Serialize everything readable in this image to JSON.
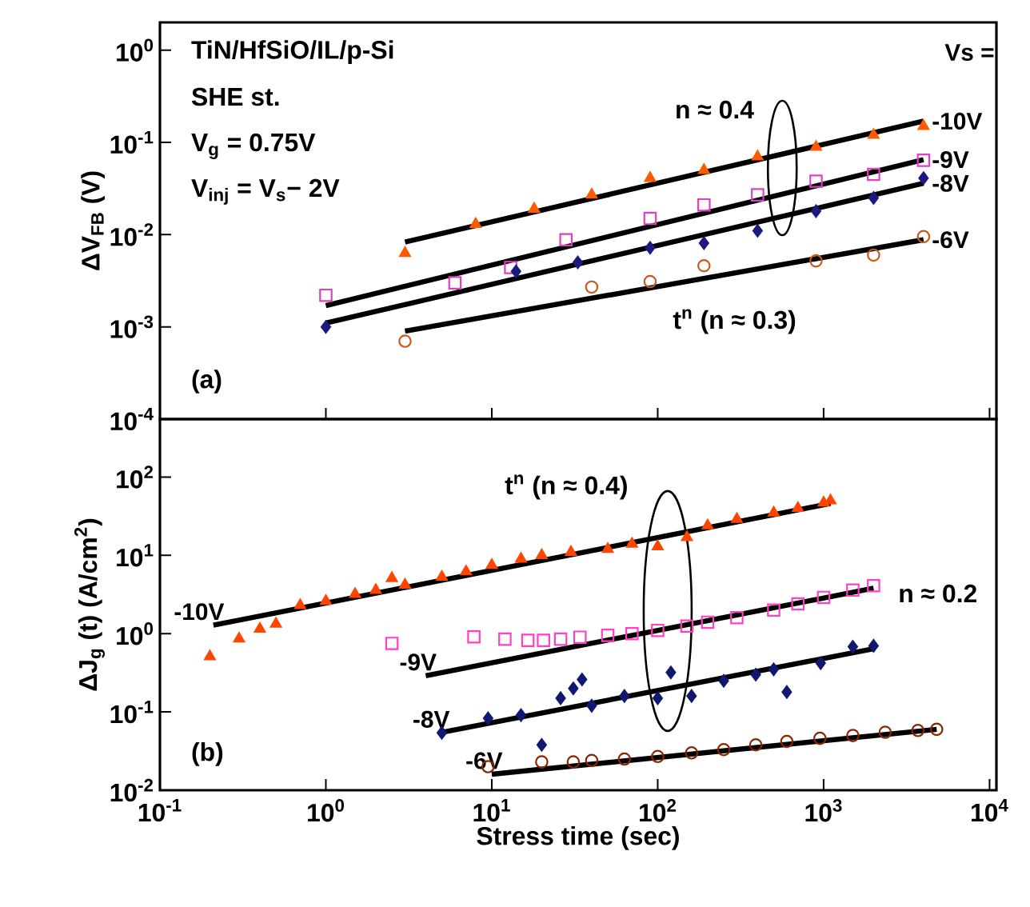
{
  "chart_data": [
    {
      "type": "scatter",
      "ylabel": "ΔV$_{FB}$ (V)",
      "legend_title": "Vs =",
      "legend": "right",
      "log": "xy",
      "tick_labels": "y",
      "xlim": [
        0.1,
        11000
      ],
      "ylim": [
        0.0001,
        2
      ],
      "xticks": [
        {
          "value": 0.1,
          "label": null
        },
        {
          "value": 1,
          "label": null
        },
        {
          "value": 10,
          "label": null
        },
        {
          "value": 100,
          "label": null
        },
        {
          "value": 1000,
          "label": null
        },
        {
          "value": 10000,
          "label": null
        }
      ],
      "yticks": [
        {
          "value": 0.0001,
          "label": "10$^{-4}$"
        },
        {
          "value": 0.001,
          "label": "10$^{-3}$"
        },
        {
          "value": 0.01,
          "label": "10$^{-2}$"
        },
        {
          "value": 0.1,
          "label": "10$^{-1}$"
        },
        {
          "value": 1,
          "label": "10$^{0}$"
        }
      ],
      "annotations": [
        "TiN/HfSiO/IL/p-Si",
        "SHE st.",
        "V$_{g}$ = 0.75V",
        "V$_{inj}$ = V$_{s}$− 2V",
        "n ≈ 0.4",
        "t$^{n}$ (n ≈ 0.3)",
        "(a)"
      ],
      "series": [
        {
          "marker": "triangle",
          "color": "#ff5a00",
          "x": [
            3,
            8,
            18,
            40,
            90,
            190,
            400,
            900,
            2000,
            4000
          ],
          "values": [
            0.0063,
            0.013,
            0.019,
            0.027,
            0.041,
            0.05,
            0.07,
            0.089,
            0.12,
            0.15
          ]
        },
        {
          "marker": "square",
          "color": "#e040c0",
          "x": [
            1,
            6,
            13,
            28,
            90,
            190,
            400,
            900,
            2000,
            4000
          ],
          "values": [
            0.0022,
            0.003,
            0.0044,
            0.0088,
            0.015,
            0.021,
            0.027,
            0.038,
            0.045,
            0.064
          ]
        },
        {
          "marker": "diamond",
          "color": "#1a1a80",
          "x": [
            1,
            14,
            33,
            90,
            190,
            400,
            900,
            2000,
            4000
          ],
          "values": [
            0.001,
            0.004,
            0.005,
            0.0072,
            0.0081,
            0.011,
            0.018,
            0.025,
            0.041
          ]
        },
        {
          "marker": "circle",
          "color": "#c85a1e",
          "x": [
            3,
            40,
            90,
            190,
            900,
            2000,
            4000
          ],
          "values": [
            0.0007,
            0.0027,
            0.0031,
            0.0046,
            0.0052,
            0.006,
            0.0095
          ]
        },
        {
          "type": "line",
          "name": "-10V",
          "color": "#000000",
          "x": [
            3,
            4000
          ],
          "values": [
            0.0083,
            0.17
          ]
        },
        {
          "type": "line",
          "name": "-9V",
          "color": "#000000",
          "x": [
            1,
            4000
          ],
          "values": [
            0.0017,
            0.065
          ]
        },
        {
          "type": "line",
          "name": "-8V",
          "color": "#000000",
          "x": [
            1,
            4000
          ],
          "values": [
            0.0011,
            0.036
          ]
        },
        {
          "type": "line",
          "name": "-6V",
          "color": "#000000",
          "x": [
            3,
            4000
          ],
          "values": [
            0.0009,
            0.0088
          ]
        }
      ]
    },
    {
      "type": "scatter",
      "xlabel": "Stress time (sec)",
      "ylabel": "ΔJ$_{g}$ (t)  (A/cm$^{2}$)",
      "legend": "left",
      "log": "xy",
      "xlim": [
        0.1,
        11000
      ],
      "ylim": [
        0.01,
        550
      ],
      "xticks": [
        {
          "value": 0.1,
          "label": "10$^{-1}$"
        },
        {
          "value": 1,
          "label": "10$^{0}$"
        },
        {
          "value": 10,
          "label": "10$^{1}$"
        },
        {
          "value": 100,
          "label": "10$^{2}$"
        },
        {
          "value": 1000,
          "label": "10$^{3}$"
        },
        {
          "value": 10000,
          "label": "10$^{4}$"
        }
      ],
      "yticks": [
        {
          "value": 0.01,
          "label": "10$^{-2}$"
        },
        {
          "value": 0.1,
          "label": "10$^{-1}$"
        },
        {
          "value": 1,
          "label": "10$^{0}$"
        },
        {
          "value": 10,
          "label": "10$^{1}$"
        },
        {
          "value": 100,
          "label": "10$^{2}$"
        }
      ],
      "annotations": [
        "t$^{n}$ (n ≈ 0.4)",
        "n ≈ 0.2",
        "(b)"
      ],
      "series": [
        {
          "marker": "triangle",
          "color": "#ff4500",
          "x": [
            0.2,
            0.3,
            0.4,
            0.5,
            0.7,
            1,
            1.5,
            2,
            2.5,
            3,
            5,
            7,
            10,
            15,
            20,
            30,
            50,
            70,
            100,
            150,
            200,
            300,
            500,
            700,
            1000,
            1100
          ],
          "values": [
            0.51,
            0.86,
            1.15,
            1.33,
            2.3,
            2.6,
            3.2,
            3.6,
            5.1,
            4.2,
            5.3,
            6.2,
            7.5,
            9,
            10,
            11,
            12,
            14,
            13,
            17,
            24,
            29,
            35,
            40,
            47,
            50
          ]
        },
        {
          "marker": "square",
          "color": "#ff40c0",
          "x": [
            2.5,
            7.8,
            12,
            16.5,
            20.5,
            26,
            34,
            50,
            70,
            100,
            150,
            200,
            300,
            500,
            700,
            1000,
            1500,
            2000
          ],
          "values": [
            0.75,
            0.91,
            0.85,
            0.82,
            0.82,
            0.85,
            0.9,
            0.95,
            1.0,
            1.1,
            1.25,
            1.4,
            1.6,
            2.0,
            2.4,
            2.9,
            3.6,
            4.1
          ]
        },
        {
          "marker": "diamond",
          "color": "#101870",
          "x": [
            5,
            9.5,
            15,
            20,
            26,
            31,
            35,
            40,
            63,
            100,
            120,
            160,
            250,
            390,
            500,
            600,
            960,
            1500,
            2000
          ],
          "values": [
            0.054,
            0.083,
            0.091,
            0.038,
            0.15,
            0.2,
            0.26,
            0.12,
            0.16,
            0.15,
            0.32,
            0.16,
            0.25,
            0.3,
            0.35,
            0.18,
            0.42,
            0.68,
            0.7
          ]
        },
        {
          "marker": "circle",
          "color": "#8b2500",
          "x": [
            9.5,
            20,
            31,
            40,
            63,
            100,
            160,
            250,
            390,
            600,
            950,
            1500,
            2350,
            3700,
            4800
          ],
          "values": [
            0.02,
            0.023,
            0.023,
            0.024,
            0.025,
            0.027,
            0.03,
            0.033,
            0.038,
            0.042,
            0.046,
            0.05,
            0.055,
            0.058,
            0.06
          ]
        },
        {
          "type": "line",
          "name": "-10V",
          "color": "#000000",
          "x": [
            0.21,
            1100
          ],
          "values": [
            1.28,
            46
          ]
        },
        {
          "type": "line",
          "name": "-9V",
          "color": "#000000",
          "x": [
            4,
            2000
          ],
          "values": [
            0.29,
            3.8
          ]
        },
        {
          "type": "line",
          "name": "-8V",
          "color": "#000000",
          "x": [
            4.8,
            2000
          ],
          "values": [
            0.054,
            0.64
          ]
        },
        {
          "type": "line",
          "name": "-6V",
          "color": "#000000",
          "x": [
            10,
            4800
          ],
          "values": [
            0.016,
            0.06
          ]
        }
      ]
    }
  ]
}
